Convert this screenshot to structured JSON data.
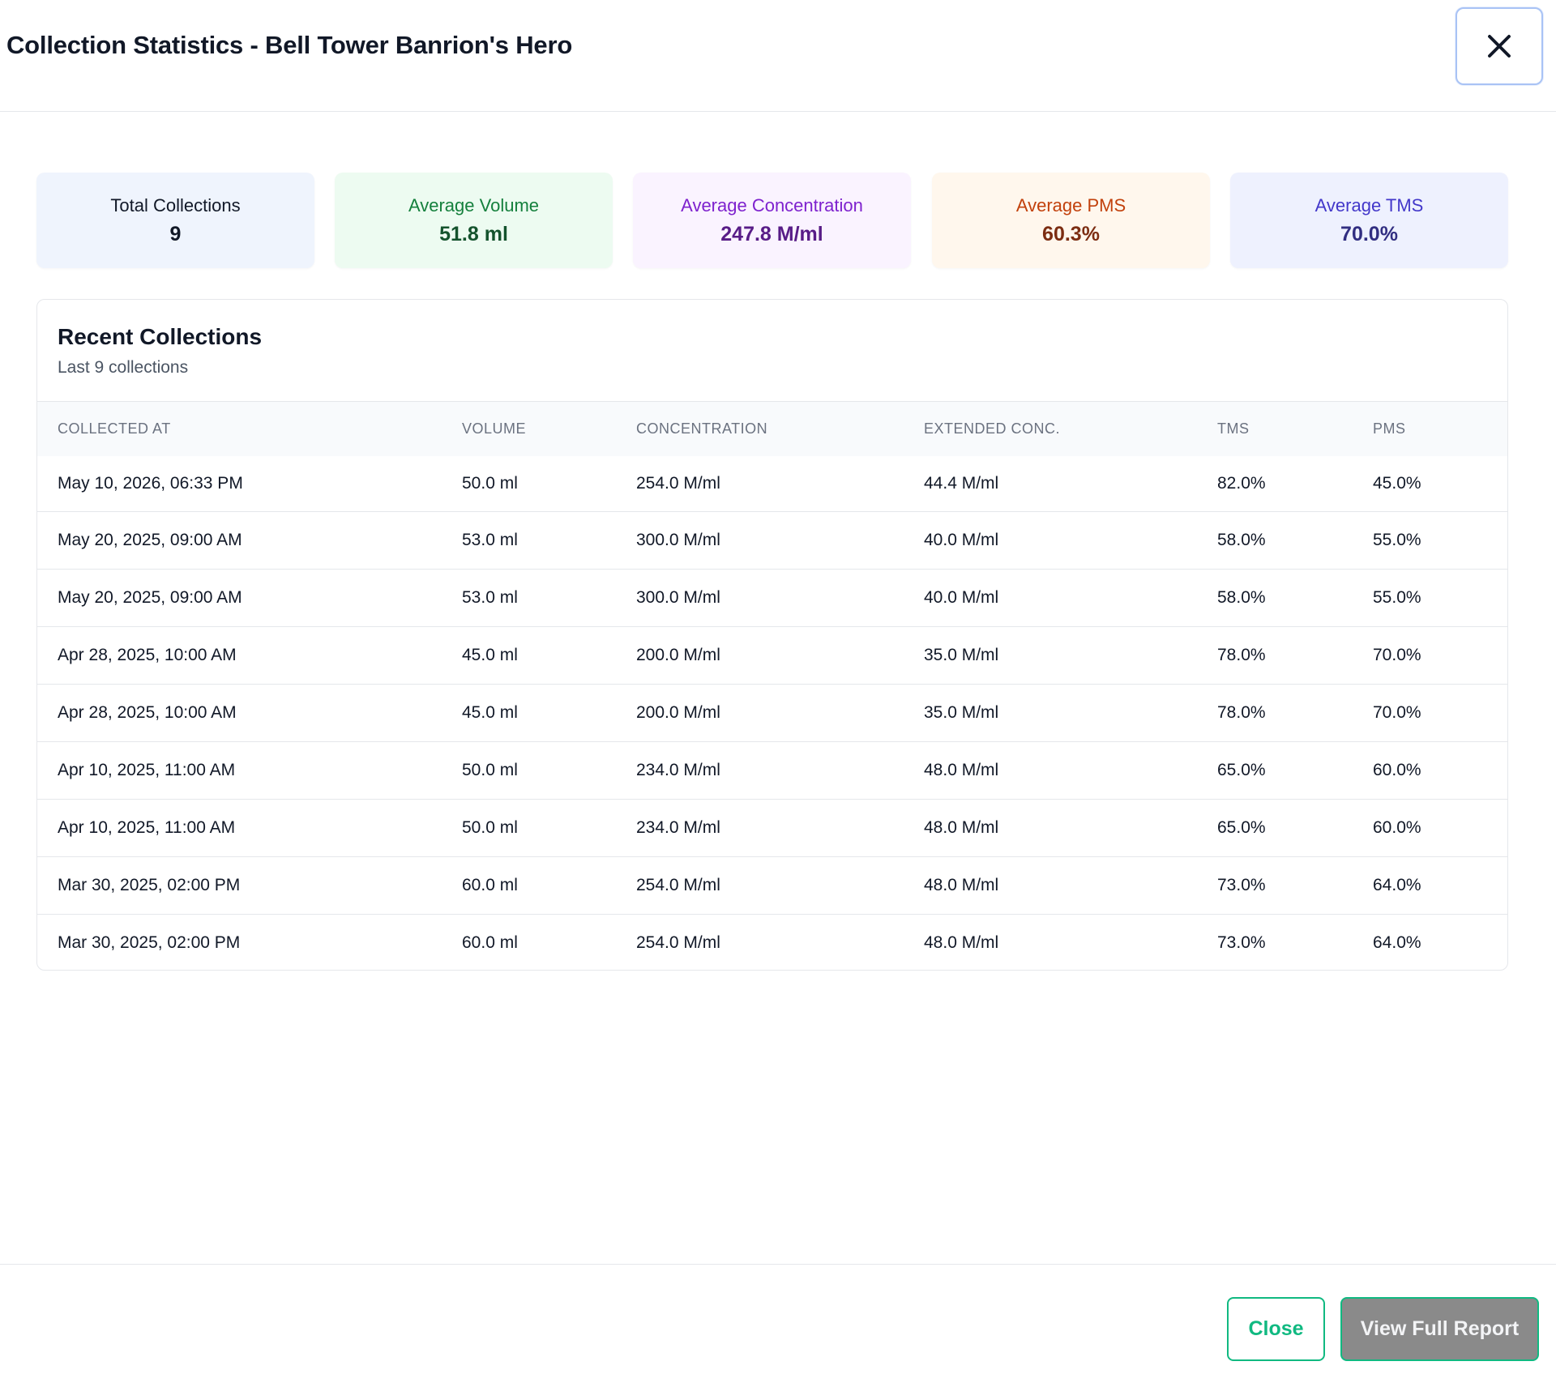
{
  "modal": {
    "title": "Collection Statistics - Bell Tower Banrion's Hero",
    "close_icon": "close-icon"
  },
  "stats": [
    {
      "label": "Total Collections",
      "value": "9",
      "color": "#111827"
    },
    {
      "label": "Average Volume",
      "value": "51.8 ml",
      "color": "#15803d"
    },
    {
      "label": "Average Concentration",
      "value": "247.8 M/ml",
      "color": "#7e22ce"
    },
    {
      "label": "Average PMS",
      "value": "60.3%",
      "color": "#c2410c"
    },
    {
      "label": "Average TMS",
      "value": "70.0%",
      "color": "#4338ca"
    }
  ],
  "recent": {
    "title": "Recent Collections",
    "subtitle": "Last 9 collections",
    "columns": [
      "COLLECTED AT",
      "VOLUME",
      "CONCENTRATION",
      "EXTENDED CONC.",
      "TMS",
      "PMS"
    ],
    "rows": [
      [
        "May 10, 2026, 06:33 PM",
        "50.0 ml",
        "254.0 M/ml",
        "44.4 M/ml",
        "82.0%",
        "45.0%"
      ],
      [
        "May 20, 2025, 09:00 AM",
        "53.0 ml",
        "300.0 M/ml",
        "40.0 M/ml",
        "58.0%",
        "55.0%"
      ],
      [
        "May 20, 2025, 09:00 AM",
        "53.0 ml",
        "300.0 M/ml",
        "40.0 M/ml",
        "58.0%",
        "55.0%"
      ],
      [
        "Apr 28, 2025, 10:00 AM",
        "45.0 ml",
        "200.0 M/ml",
        "35.0 M/ml",
        "78.0%",
        "70.0%"
      ],
      [
        "Apr 28, 2025, 10:00 AM",
        "45.0 ml",
        "200.0 M/ml",
        "35.0 M/ml",
        "78.0%",
        "70.0%"
      ],
      [
        "Apr 10, 2025, 11:00 AM",
        "50.0 ml",
        "234.0 M/ml",
        "48.0 M/ml",
        "65.0%",
        "60.0%"
      ],
      [
        "Apr 10, 2025, 11:00 AM",
        "50.0 ml",
        "234.0 M/ml",
        "48.0 M/ml",
        "65.0%",
        "60.0%"
      ],
      [
        "Mar 30, 2025, 02:00 PM",
        "60.0 ml",
        "254.0 M/ml",
        "48.0 M/ml",
        "73.0%",
        "64.0%"
      ],
      [
        "Mar 30, 2025, 02:00 PM",
        "60.0 ml",
        "254.0 M/ml",
        "48.0 M/ml",
        "73.0%",
        "64.0%"
      ]
    ]
  },
  "footer": {
    "close_label": "Close",
    "report_label": "View Full Report"
  }
}
